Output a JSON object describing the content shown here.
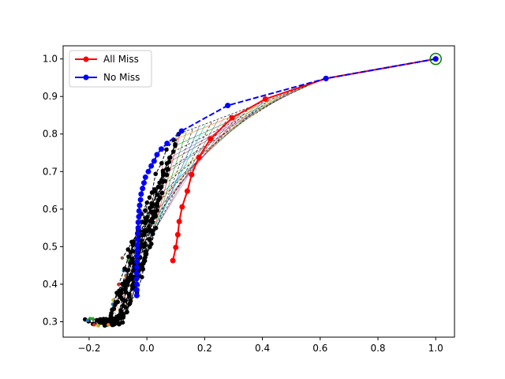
{
  "chart_data": {
    "type": "line",
    "title": "",
    "xlabel": "",
    "ylabel": "",
    "xlim": [
      -0.29,
      1.065
    ],
    "ylim": [
      0.259,
      1.035
    ],
    "grid": false,
    "legend_position": "top-left",
    "x_ticks": [
      {
        "value": -0.2,
        "label": "−0.2"
      },
      {
        "value": 0.0,
        "label": "0.0"
      },
      {
        "value": 0.2,
        "label": "0.2"
      },
      {
        "value": 0.4,
        "label": "0.4"
      },
      {
        "value": 0.6,
        "label": "0.6"
      },
      {
        "value": 0.8,
        "label": "0.8"
      },
      {
        "value": 1.0,
        "label": "1.0"
      }
    ],
    "y_ticks": [
      {
        "value": 0.3,
        "label": "0.3"
      },
      {
        "value": 0.4,
        "label": "0.4"
      },
      {
        "value": 0.5,
        "label": "0.5"
      },
      {
        "value": 0.6,
        "label": "0.6"
      },
      {
        "value": 0.7,
        "label": "0.7"
      },
      {
        "value": 0.8,
        "label": "0.8"
      },
      {
        "value": 0.9,
        "label": "0.9"
      },
      {
        "value": 1.0,
        "label": "1.0"
      }
    ],
    "series": [
      {
        "name": "All Miss",
        "color": "#ff0000",
        "line_style": "solid",
        "points": [
          [
            1.0,
            1.0
          ],
          [
            0.62,
            0.948
          ],
          [
            0.41,
            0.893
          ],
          [
            0.295,
            0.843
          ],
          [
            0.22,
            0.787
          ],
          [
            0.18,
            0.738
          ],
          [
            0.155,
            0.692
          ],
          [
            0.14,
            0.648
          ],
          [
            0.122,
            0.606
          ],
          [
            0.112,
            0.567
          ],
          [
            0.107,
            0.532
          ],
          [
            0.1,
            0.498
          ],
          [
            0.09,
            0.463
          ]
        ]
      },
      {
        "name": "No Miss",
        "color": "#0000ff",
        "line_style": "dashed",
        "points": [
          [
            1.0,
            1.0
          ],
          [
            0.62,
            0.948
          ],
          [
            0.28,
            0.876
          ],
          [
            0.12,
            0.808
          ],
          [
            0.07,
            0.775
          ],
          [
            0.05,
            0.76
          ],
          [
            0.035,
            0.745
          ],
          [
            0.025,
            0.728
          ],
          [
            0.015,
            0.715
          ],
          [
            0.005,
            0.7
          ],
          [
            -0.005,
            0.685
          ],
          [
            -0.01,
            0.67
          ],
          [
            -0.015,
            0.655
          ],
          [
            -0.02,
            0.64
          ],
          [
            -0.022,
            0.625
          ],
          [
            -0.025,
            0.61
          ],
          [
            -0.027,
            0.595
          ],
          [
            -0.028,
            0.58
          ],
          [
            -0.03,
            0.565
          ],
          [
            -0.03,
            0.55
          ],
          [
            -0.032,
            0.535
          ],
          [
            -0.032,
            0.52
          ],
          [
            -0.033,
            0.505
          ],
          [
            -0.033,
            0.49
          ],
          [
            -0.034,
            0.475
          ],
          [
            -0.034,
            0.46
          ],
          [
            -0.035,
            0.445
          ],
          [
            -0.035,
            0.43
          ],
          [
            -0.035,
            0.415
          ],
          [
            -0.035,
            0.4
          ],
          [
            -0.035,
            0.385
          ],
          [
            -0.035,
            0.37
          ]
        ]
      }
    ],
    "background_paths": {
      "count": 24,
      "marker_color": "#000000",
      "line_colors": [
        "#1f77b4",
        "#ff7f0e",
        "#2ca02c",
        "#d62728",
        "#9467bd",
        "#8c564b",
        "#e377c2",
        "#7f7f7f",
        "#bcbd22",
        "#17becf"
      ]
    },
    "highlight_marker": {
      "x": 1.0,
      "y": 1.0,
      "color": "#008000",
      "shape": "open-circle"
    }
  }
}
